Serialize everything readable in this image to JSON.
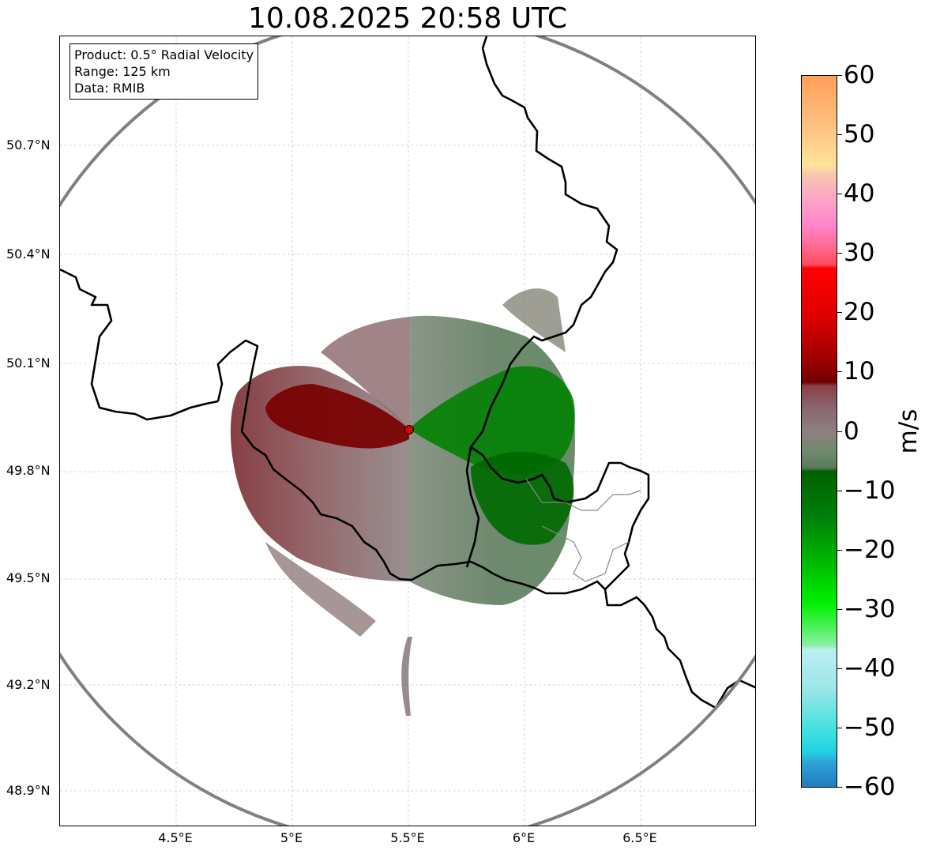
{
  "title": "10.08.2025 20:58 UTC",
  "info": {
    "product": "Product: 0.5° Radial Velocity",
    "range": "Range: 125 km",
    "source": "Data: RMIB"
  },
  "map": {
    "lon_range": [
      4.0,
      7.0
    ],
    "lat_range": [
      48.8,
      51.0
    ],
    "radar_site": {
      "lon": 5.505,
      "lat": 49.914
    },
    "range_ring_km": 125,
    "lat_ticks": [
      "50.7°N",
      "50.4°N",
      "50.1°N",
      "49.8°N",
      "49.5°N",
      "49.2°N",
      "48.9°N"
    ],
    "lon_ticks": [
      "4.5°E",
      "5°E",
      "5.5°E",
      "6°E",
      "6.5°E"
    ],
    "colors": {
      "border": "#000000",
      "range_ring": "#808080",
      "radar_site": "#e00000",
      "inbound": "#008000",
      "outbound": "#7a0000"
    }
  },
  "colorbar": {
    "label": "m/s",
    "min": -60,
    "max": 60,
    "ticks": [
      "60",
      "50",
      "40",
      "30",
      "20",
      "10",
      "0",
      "−10",
      "−20",
      "−30",
      "−40",
      "−50",
      "−60"
    ]
  }
}
